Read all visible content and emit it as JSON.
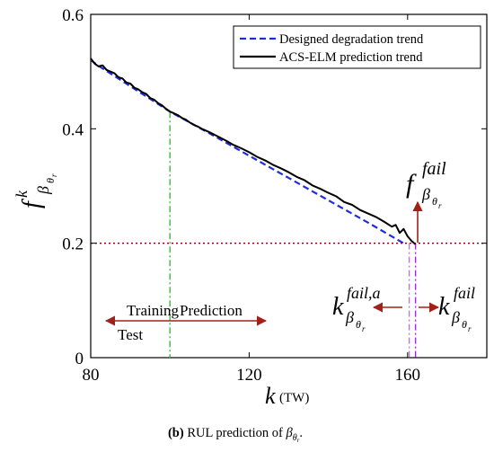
{
  "chart_data": {
    "type": "line",
    "xlabel_main": "k",
    "xlabel_unit": "(TW)",
    "ylabel_base": "f",
    "ylabel_sup": "k",
    "ylabel_sub": "β",
    "ylabel_subsub": "θ",
    "ylabel_subsubsub": "r",
    "xlim": [
      80,
      180
    ],
    "ylim": [
      0,
      0.6
    ],
    "xticks": [
      "80",
      "120",
      "160"
    ],
    "yticks": [
      "0",
      "0.2",
      "0.4",
      "0.6"
    ],
    "xtick_values": [
      80,
      120,
      160
    ],
    "ytick_values": [
      0,
      0.2,
      0.4,
      0.6
    ],
    "grid": false,
    "legend_position": "top-right",
    "series": [
      {
        "name": "Designed degradation trend",
        "style": "dashed",
        "color": "#1f2fd8",
        "x": [
          80,
          82,
          100,
          110,
          120,
          130,
          140,
          150,
          159
        ],
        "y": [
          0.52,
          0.51,
          0.43,
          0.392,
          0.353,
          0.314,
          0.275,
          0.236,
          0.2
        ]
      },
      {
        "name": "ACS-ELM prediction trend",
        "style": "solid",
        "color": "#000000",
        "x": [
          80,
          81,
          82,
          83,
          84,
          85,
          86,
          87,
          88,
          89,
          90,
          91,
          92,
          93,
          94,
          95,
          96,
          97,
          98,
          99,
          100,
          101,
          102,
          103,
          104,
          105,
          106,
          107,
          108,
          109,
          110,
          112,
          114,
          116,
          118,
          120,
          122,
          124,
          126,
          128,
          130,
          132,
          134,
          136,
          138,
          140,
          142,
          144,
          146,
          148,
          150,
          152,
          154,
          156,
          157,
          158,
          159,
          160,
          161,
          162
        ],
        "y": [
          0.523,
          0.514,
          0.509,
          0.511,
          0.503,
          0.5,
          0.497,
          0.49,
          0.488,
          0.481,
          0.479,
          0.472,
          0.469,
          0.464,
          0.461,
          0.454,
          0.451,
          0.445,
          0.441,
          0.435,
          0.43,
          0.427,
          0.424,
          0.419,
          0.416,
          0.411,
          0.407,
          0.404,
          0.4,
          0.397,
          0.394,
          0.387,
          0.38,
          0.372,
          0.366,
          0.359,
          0.351,
          0.345,
          0.337,
          0.331,
          0.324,
          0.316,
          0.31,
          0.301,
          0.295,
          0.288,
          0.282,
          0.272,
          0.267,
          0.258,
          0.252,
          0.246,
          0.238,
          0.229,
          0.232,
          0.218,
          0.225,
          0.212,
          0.204,
          0.198
        ]
      }
    ],
    "reference_lines": {
      "threshold_y": 0.2,
      "threshold_color": "#8b0000",
      "split_x": 100,
      "split_color": "#22cc22",
      "fail_a_x": 160.4,
      "fail_a_color": "#cc66ff",
      "fail_x": 162,
      "fail_color": "#9b30d0"
    },
    "annotations": {
      "training": "Training",
      "test": "Test",
      "prediction": "Prediction",
      "f_fail_base": "f",
      "f_fail_sup": "fail",
      "k_fail_a_base": "k",
      "k_fail_a_sup": "fail,a",
      "k_fail_base": "k",
      "k_fail_sup": "fail",
      "sub_beta": "β",
      "sub_theta": "θ",
      "sub_r": "r",
      "arrow_color": "#a0201a"
    }
  },
  "caption": {
    "label": "(b)",
    "text": " RUL prediction of ",
    "beta": "β",
    "theta": "θ",
    "r": "r",
    "period": "."
  }
}
